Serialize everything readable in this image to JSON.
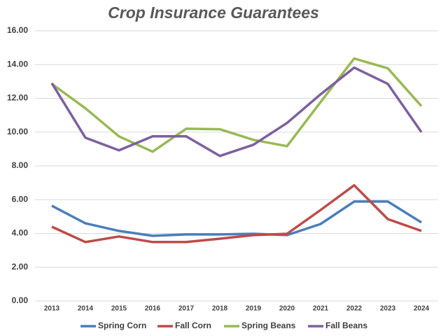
{
  "chart_data": {
    "type": "line",
    "title": "Crop Insurance Guarantees",
    "categories": [
      "2013",
      "2014",
      "2015",
      "2016",
      "2017",
      "2018",
      "2019",
      "2020",
      "2021",
      "2022",
      "2023",
      "2024"
    ],
    "series": [
      {
        "name": "Spring Corn",
        "color": "#4a7ebb",
        "values": [
          5.64,
          4.6,
          4.15,
          3.86,
          3.94,
          3.94,
          3.98,
          3.9,
          4.56,
          5.89,
          5.89,
          4.65
        ]
      },
      {
        "name": "Fall Corn",
        "color": "#be4b48",
        "values": [
          4.4,
          3.49,
          3.82,
          3.49,
          3.49,
          3.69,
          3.9,
          3.98,
          5.39,
          6.85,
          4.85,
          4.15
        ]
      },
      {
        "name": "Spring Beans",
        "color": "#98b954",
        "values": [
          12.86,
          11.41,
          9.75,
          8.84,
          10.2,
          10.17,
          9.54,
          9.17,
          11.78,
          14.36,
          13.78,
          11.54
        ]
      },
      {
        "name": "Fall Beans",
        "color": "#7d5fa0",
        "values": [
          12.9,
          9.67,
          8.92,
          9.75,
          9.75,
          8.59,
          9.25,
          10.54,
          12.24,
          13.82,
          12.86,
          10.0
        ]
      }
    ],
    "ylim": [
      0,
      16
    ],
    "yticks": [
      {
        "value": 0,
        "label": "0.00"
      },
      {
        "value": 2,
        "label": "2.00"
      },
      {
        "value": 4,
        "label": "4.00"
      },
      {
        "value": 6,
        "label": "6.00"
      },
      {
        "value": 8,
        "label": "8.00"
      },
      {
        "value": 10,
        "label": "10.00"
      },
      {
        "value": 12,
        "label": "12.00"
      },
      {
        "value": 14,
        "label": "14.00"
      },
      {
        "value": 16,
        "label": "16.00"
      }
    ],
    "grid": true,
    "legend": "bottom"
  }
}
